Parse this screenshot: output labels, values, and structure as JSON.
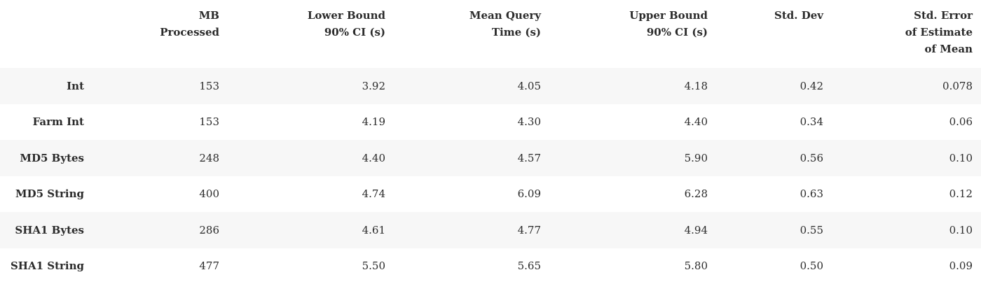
{
  "table": {
    "headers": [
      [
        ""
      ],
      [
        "MB",
        "Processed"
      ],
      [
        "Lower Bound",
        "90% CI (s)"
      ],
      [
        "Mean Query",
        "Time (s)"
      ],
      [
        "Upper Bound",
        "90% CI (s)"
      ],
      [
        "Std. Dev"
      ],
      [
        "Std. Error",
        "of Estimate",
        "of Mean"
      ]
    ],
    "rows": [
      {
        "label": "Int",
        "values": [
          "153",
          "3.92",
          "4.05",
          "4.18",
          "0.42",
          "0.078"
        ]
      },
      {
        "label": "Farm Int",
        "values": [
          "153",
          "4.19",
          "4.30",
          "4.40",
          "0.34",
          "0.06"
        ]
      },
      {
        "label": "MD5 Bytes",
        "values": [
          "248",
          "4.40",
          "4.57",
          "5.90",
          "0.56",
          "0.10"
        ]
      },
      {
        "label": "MD5 String",
        "values": [
          "400",
          "4.74",
          "6.09",
          "6.28",
          "0.63",
          "0.12"
        ]
      },
      {
        "label": "SHA1 Bytes",
        "values": [
          "286",
          "4.61",
          "4.77",
          "4.94",
          "0.55",
          "0.10"
        ]
      },
      {
        "label": "SHA1 String",
        "values": [
          "477",
          "5.50",
          "5.65",
          "5.80",
          "0.50",
          "0.09"
        ]
      }
    ]
  }
}
